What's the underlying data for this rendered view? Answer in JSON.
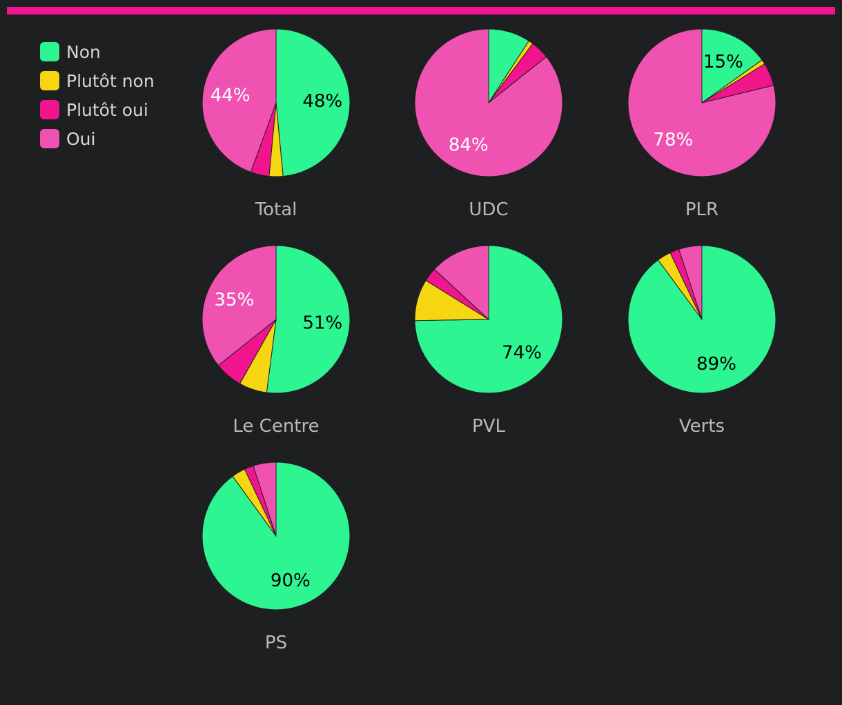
{
  "legend": [
    {
      "label": "Non",
      "color": "#2cf592"
    },
    {
      "label": "Plutôt non",
      "color": "#f6d611"
    },
    {
      "label": "Plutôt oui",
      "color": "#f0158c"
    },
    {
      "label": "Oui",
      "color": "#f052b2"
    }
  ],
  "chart_data": {
    "type": "pie",
    "categories": [
      "Non",
      "Plutôt non",
      "Plutôt oui",
      "Oui"
    ],
    "series": [
      {
        "name": "Total",
        "values": [
          48,
          3,
          4,
          44
        ],
        "labels": [
          "48%",
          "",
          "",
          "44%"
        ]
      },
      {
        "name": "UDC",
        "values": [
          9,
          1,
          4,
          84
        ],
        "labels": [
          "",
          "",
          "",
          "84%"
        ]
      },
      {
        "name": "PLR",
        "values": [
          15,
          1,
          5,
          78
        ],
        "labels": [
          "15%",
          "",
          "",
          "78%"
        ]
      },
      {
        "name": "Le Centre",
        "values": [
          51,
          6,
          6,
          35
        ],
        "labels": [
          "51%",
          "",
          "",
          "35%"
        ]
      },
      {
        "name": "PVL",
        "values": [
          74,
          9,
          3,
          13
        ],
        "labels": [
          "74%",
          "",
          "",
          ""
        ]
      },
      {
        "name": "Verts",
        "values": [
          89,
          3,
          2,
          5
        ],
        "labels": [
          "89%",
          "",
          "",
          ""
        ]
      },
      {
        "name": "PS",
        "values": [
          90,
          3,
          2,
          5
        ],
        "labels": [
          "90%",
          "",
          "",
          ""
        ]
      }
    ],
    "label_colors": {
      "Non": "#000000",
      "Oui": "#ffffff"
    },
    "title": "",
    "xlabel": "",
    "ylabel": ""
  }
}
